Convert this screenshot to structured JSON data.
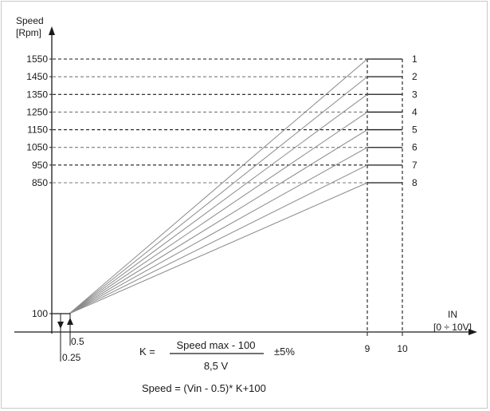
{
  "chart_data": {
    "type": "line",
    "ylabel": [
      "Speed",
      "[Rpm]"
    ],
    "xlabel": [
      "IN",
      "[0 ÷ 10V]"
    ],
    "y_ticks": [
      1550,
      1450,
      1350,
      1250,
      1150,
      1050,
      950,
      850,
      100
    ],
    "x_ticks": [
      "0.5",
      "0.25",
      "9",
      "10"
    ],
    "curves": [
      {
        "label": "1",
        "max_speed": 1550
      },
      {
        "label": "2",
        "max_speed": 1450
      },
      {
        "label": "3",
        "max_speed": 1350
      },
      {
        "label": "4",
        "max_speed": 1250
      },
      {
        "label": "5",
        "max_speed": 1150
      },
      {
        "label": "6",
        "max_speed": 1050
      },
      {
        "label": "7",
        "max_speed": 950
      },
      {
        "label": "8",
        "max_speed": 850
      }
    ],
    "start": {
      "vin": 0.5,
      "speed": 100
    },
    "ramp_end_vin": 9,
    "max_vin": 10,
    "formula_k": {
      "lhs": "K =",
      "numerator": "Speed max - 100",
      "denominator": "8,5 V",
      "tolerance": "±5%"
    },
    "formula_speed": "Speed = (Vin - 0.5)* K+100"
  }
}
